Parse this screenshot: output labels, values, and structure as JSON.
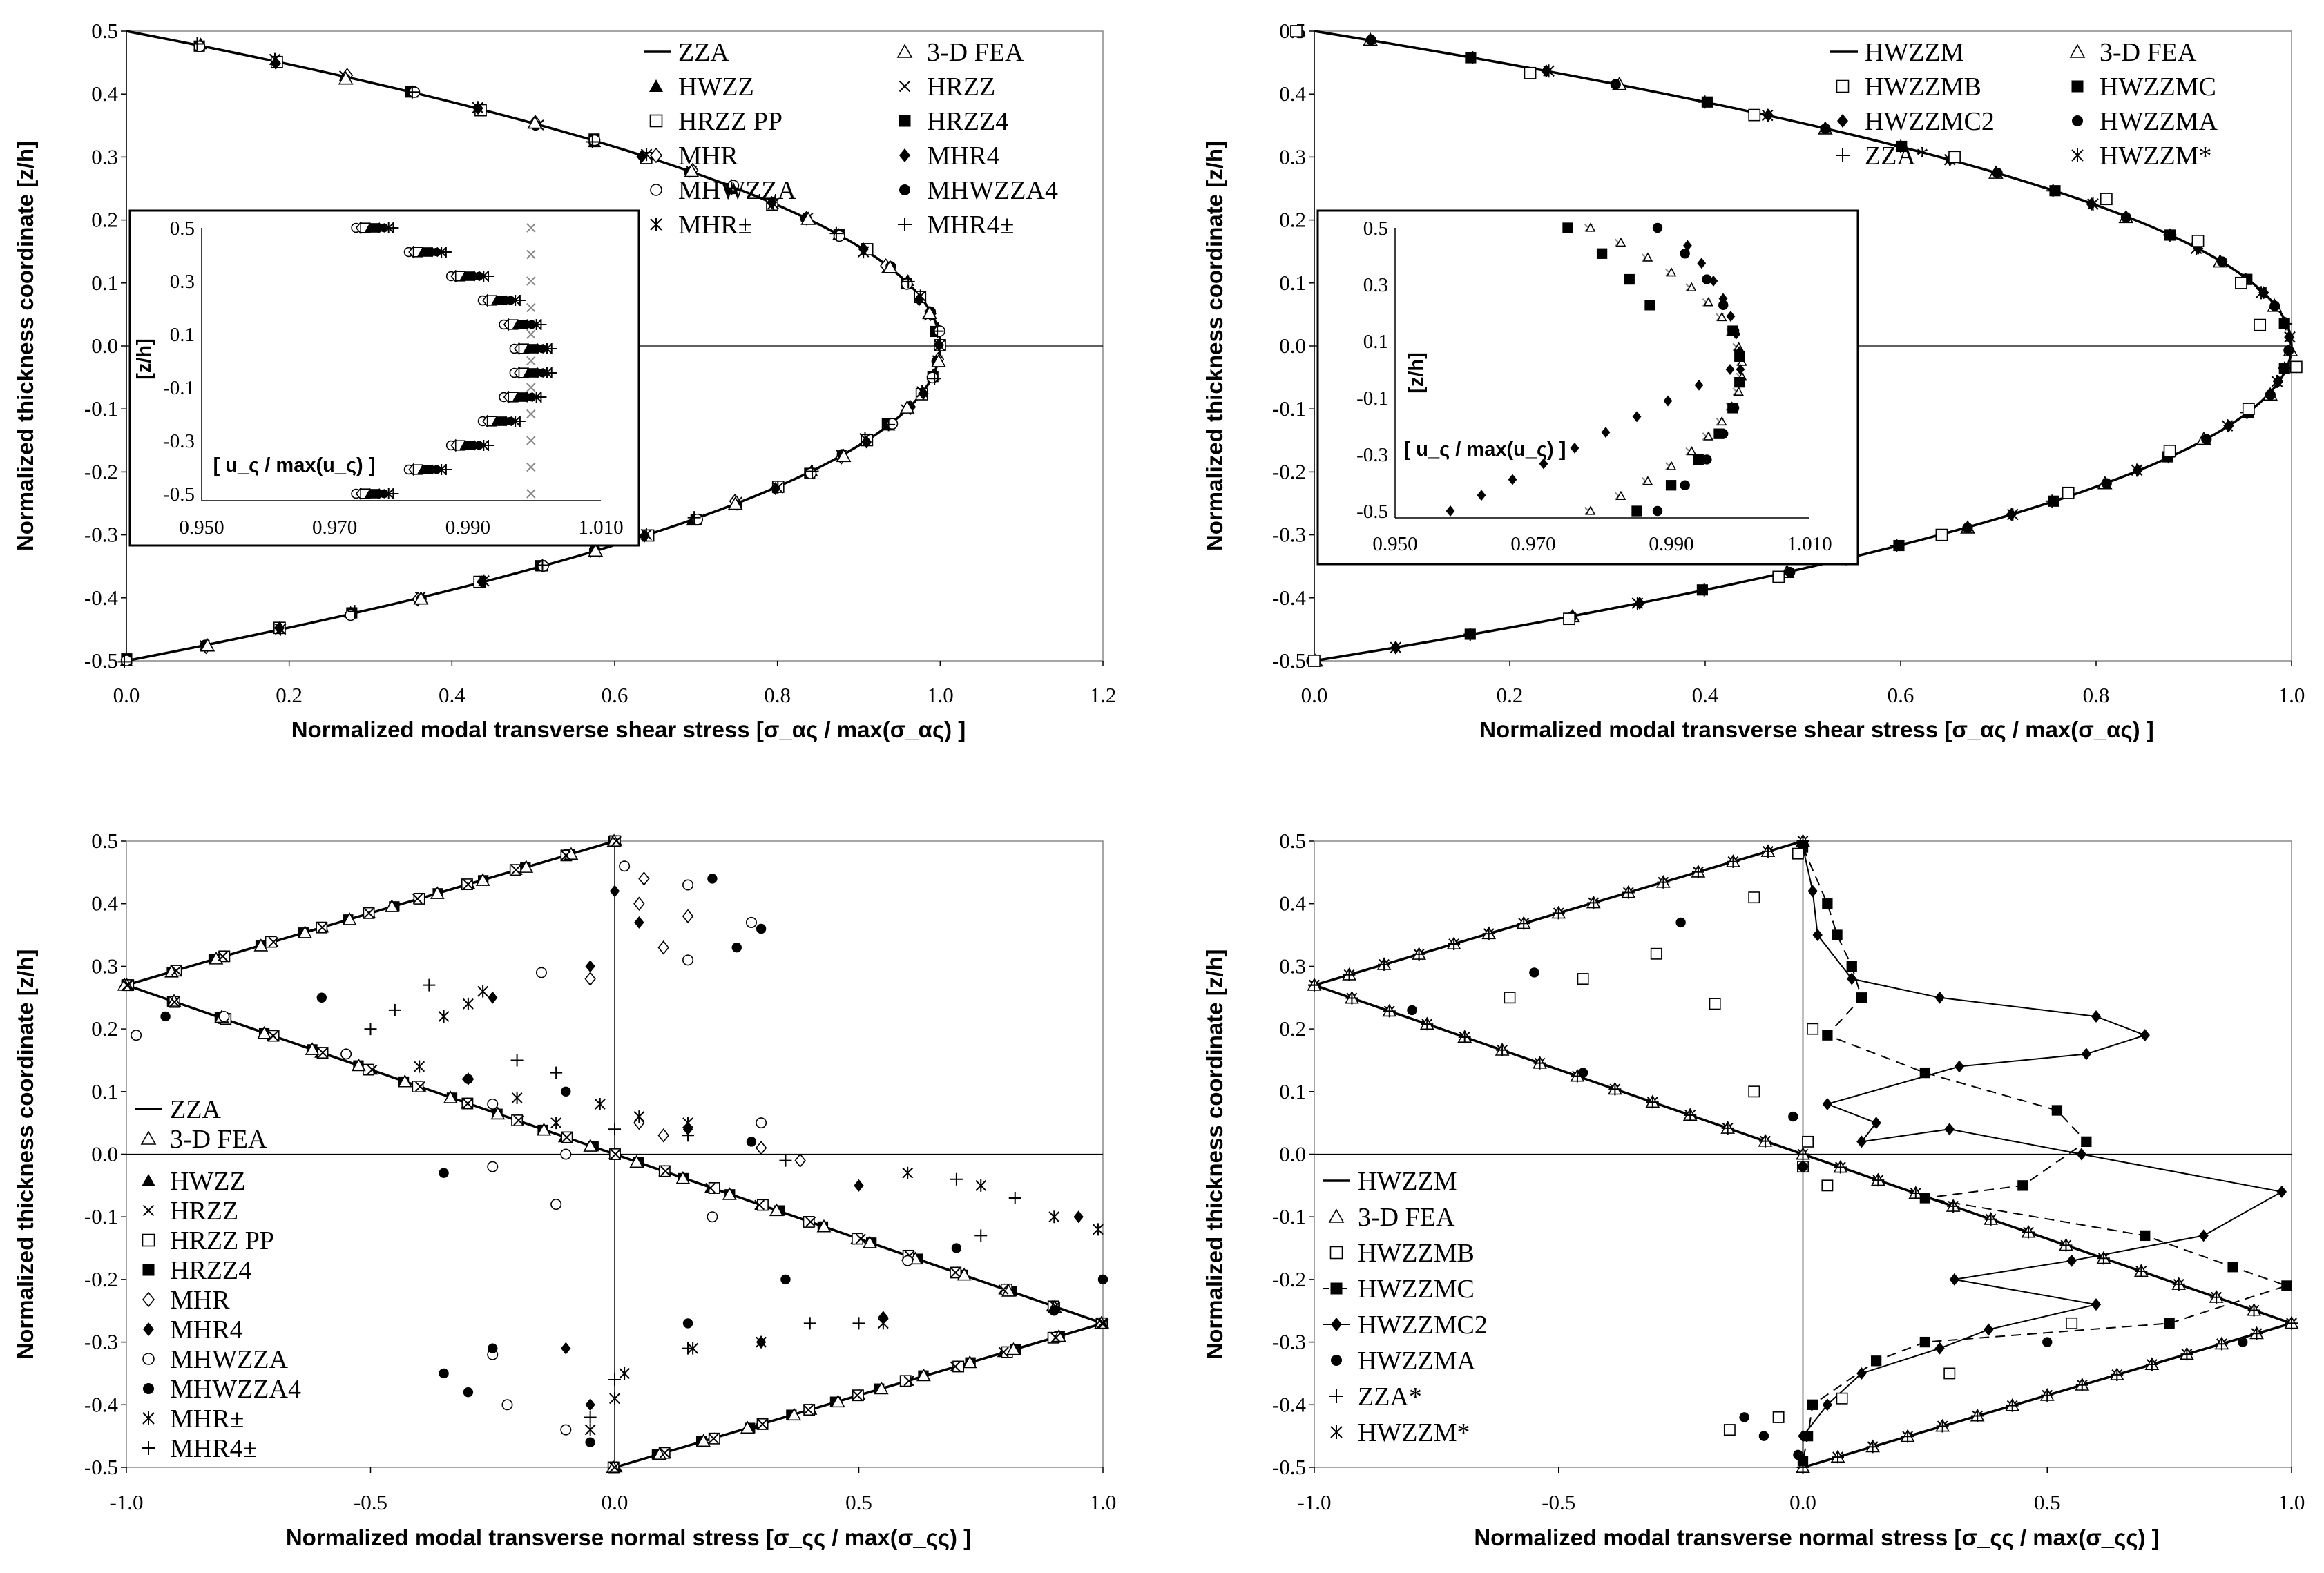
{
  "chart_data": [
    {
      "type": "scatter",
      "title": "",
      "xlabel": "Normalized modal transverse shear stress [σ_ας / max(σ_ας) ]",
      "ylabel": "Normalized thickness coordinate [z/h]",
      "xlim": [
        0,
        1.2
      ],
      "ylim": [
        -0.5,
        0.5
      ],
      "xticks": [
        "0.0",
        "0.2",
        "0.4",
        "0.6",
        "0.8",
        "1.0",
        "1.2"
      ],
      "yticks": [
        "0.5",
        "0.4",
        "0.3",
        "0.2",
        "0.1",
        "0.0",
        "-0.1",
        "-0.2",
        "-0.3",
        "-0.4",
        "-0.5"
      ],
      "legend": [
        "ZZA",
        "3-D FEA",
        "HWZZ",
        "HRZZ",
        "HRZZ PP",
        "HRZZ4",
        "MHR",
        "MHR4",
        "MHWZZA",
        "MHWZZA4",
        "MHR±",
        "MHR4±"
      ],
      "curve": "parabolic profile 1-4(z/h)^2, peak 1.0 at z/h = 0",
      "inset": {
        "xlabel": "[ u_ς / max(u_ς) ]",
        "ylabel": "[z/h]",
        "xlim": [
          0.95,
          1.01
        ],
        "ylim": [
          -0.5,
          0.5
        ],
        "xticks": [
          "0.950",
          "0.970",
          "0.990",
          "1.010"
        ],
        "yticks": [
          "0.5",
          "0.3",
          "0.1",
          "-0.1",
          "-0.3",
          "-0.5"
        ]
      }
    },
    {
      "type": "scatter",
      "title": "",
      "xlabel": "Normalized modal transverse shear stress [σ_ας / max(σ_ας) ]",
      "ylabel": "Normalized thickness coordinate [z/h]",
      "xlim": [
        0,
        1.0
      ],
      "ylim": [
        -0.5,
        0.5
      ],
      "xticks": [
        "0.0",
        "0.2",
        "0.4",
        "0.6",
        "0.8",
        "1.0"
      ],
      "yticks": [
        "0.5",
        "0.4",
        "0.3",
        "0.2",
        "0.1",
        "0.0",
        "-0.1",
        "-0.2",
        "-0.3",
        "-0.4",
        "-0.5"
      ],
      "legend": [
        "HWZZM",
        "3-D FEA",
        "HWZZMB",
        "HWZZMC",
        "HWZZMC2",
        "HWZZMA",
        "ZZA*",
        "HWZZM*"
      ],
      "curve": "parabolic profile 1-4(z/h)^2, peak 1.0 at z/h = 0",
      "inset": {
        "xlabel": "[ u_ς / max(u_ς) ]",
        "ylabel": "[z/h]",
        "xlim": [
          0.95,
          1.01
        ],
        "ylim": [
          -0.5,
          0.5
        ],
        "xticks": [
          "0.950",
          "0.970",
          "0.990",
          "1.010"
        ],
        "yticks": [
          "0.5",
          "0.3",
          "0.1",
          "-0.1",
          "-0.3",
          "-0.5"
        ]
      }
    },
    {
      "type": "scatter",
      "title": "",
      "xlabel": "Normalized modal transverse normal stress [σ_ςς / max(σ_ςς) ]",
      "ylabel": "Normalized thickness coordinate [z/h]",
      "xlim": [
        -1.0,
        1.0
      ],
      "ylim": [
        -0.5,
        0.5
      ],
      "xticks": [
        "-1.0",
        "-0.5",
        "0.0",
        "0.5",
        "1.0"
      ],
      "yticks": [
        "0.5",
        "0.4",
        "0.3",
        "0.2",
        "0.1",
        "0.0",
        "-0.1",
        "-0.2",
        "-0.3",
        "-0.4",
        "-0.5"
      ],
      "legend": [
        "ZZA",
        "3-D FEA",
        "HWZZ",
        "HRZZ",
        "HRZZ PP",
        "HRZZ4",
        "MHR",
        "MHR4",
        "MHWZZA",
        "MHWZZA4",
        "MHR±",
        "MHR4±"
      ],
      "curve_points": [
        [
          0,
          0.5
        ],
        [
          -1,
          0.27
        ],
        [
          1,
          -0.27
        ],
        [
          0,
          -0.5
        ]
      ]
    },
    {
      "type": "scatter",
      "title": "",
      "xlabel": "Normalized modal transverse normal stress [σ_ςς / max(σ_ςς) ]",
      "ylabel": "Normalized thickness coordinate [z/h]",
      "xlim": [
        -1.0,
        1.0
      ],
      "ylim": [
        -0.5,
        0.5
      ],
      "xticks": [
        "-1.0",
        "-0.5",
        "0.0",
        "0.5",
        "1.0"
      ],
      "yticks": [
        "0.5",
        "0.4",
        "0.3",
        "0.2",
        "0.1",
        "0.0",
        "-0.1",
        "-0.2",
        "-0.3",
        "-0.4",
        "-0.5"
      ],
      "legend": [
        "HWZZM",
        "3-D FEA",
        "HWZZMB",
        "HWZZMC",
        "HWZZMC2",
        "HWZZMA",
        "ZZA*",
        "HWZZM*"
      ],
      "curve_points": [
        [
          0,
          0.5
        ],
        [
          -1,
          0.27
        ],
        [
          1,
          -0.27
        ],
        [
          0,
          -0.5
        ]
      ]
    }
  ]
}
